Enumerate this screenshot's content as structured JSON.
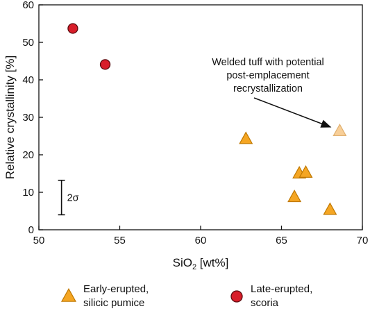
{
  "chart_data": {
    "type": "scatter",
    "xlabel": "SiO",
    "xlabel_sub": "2",
    "xlabel_unit": " [wt%]",
    "ylabel": "Relative crystallinity [%]",
    "xlim": [
      50,
      70
    ],
    "ylim": [
      0,
      60
    ],
    "xticks": [
      50,
      55,
      60,
      65,
      70
    ],
    "yticks": [
      0,
      10,
      20,
      30,
      40,
      50,
      60
    ],
    "grid": false,
    "legend_position": "bottom",
    "series": [
      {
        "name": "Early-erupted, silicic pumice",
        "legend_lines": [
          "Early-erupted,",
          "silicic pumice"
        ],
        "marker": "triangle",
        "color": "#f5a623",
        "edge_color": "#c07800",
        "points": [
          {
            "x": 62.8,
            "y": 24.2
          },
          {
            "x": 66.1,
            "y": 15.0
          },
          {
            "x": 66.5,
            "y": 15.2
          },
          {
            "x": 65.8,
            "y": 8.7
          },
          {
            "x": 68.0,
            "y": 5.3
          }
        ]
      },
      {
        "name": "Late-erupted, scoria",
        "legend_lines": [
          "Late-erupted,",
          "scoria"
        ],
        "marker": "circle",
        "color": "#d81e2a",
        "edge_color": "#5a0a0e",
        "points": [
          {
            "x": 52.1,
            "y": 53.7
          },
          {
            "x": 54.1,
            "y": 44.1
          }
        ]
      }
    ],
    "highlight_point": {
      "x": 68.6,
      "y": 26.3,
      "marker": "triangle",
      "color": "#f8cf98",
      "edge_color": "#e0b070"
    },
    "annotation": {
      "lines": [
        "Welded tuff with potential",
        "post-emplacement",
        "recrystallization"
      ]
    },
    "error_bar": {
      "label": "2σ",
      "x": 51.4,
      "y_low": 4.0,
      "y_high": 13.2
    }
  }
}
